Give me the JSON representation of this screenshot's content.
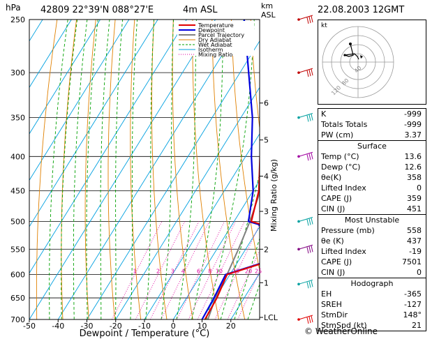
{
  "header": {
    "hpa_label": "hPa",
    "station": "42809  22°39'N  088°27'E",
    "elevation": "4m  ASL",
    "km_label": "km",
    "asl_label": "ASL",
    "datetime": "22.08.2003  12GMT"
  },
  "legend": [
    "Temperature",
    "Dewpoint",
    "Parcel Trajectory",
    "Dry Adiabat",
    "Wet Adiabat",
    "Isotherm",
    "Mixing Ratio"
  ],
  "colors": {
    "temperature": "#e00000",
    "dewpoint": "#0000e0",
    "parcel": "#808080",
    "dry_adiabat": "#e08000",
    "wet_adiabat": "#00a000",
    "isotherm": "#00a0e0",
    "mixing_ratio": "#e000a0"
  },
  "axes": {
    "xlabel": "Dewpoint / Temperature (°C)",
    "ylabel": "Mixing Ratio (g/kg)",
    "x_ticks": [
      "-50",
      "-40",
      "-30",
      "-20",
      "-10",
      "0",
      "10",
      "20"
    ],
    "pressure_levels": [
      250,
      300,
      350,
      400,
      450,
      500,
      550,
      600,
      650,
      700
    ],
    "km_ticks": [
      {
        "label": "6",
        "p": 333
      },
      {
        "label": "5",
        "p": 378
      },
      {
        "label": "4",
        "p": 428
      },
      {
        "label": "3",
        "p": 483
      },
      {
        "label": "2",
        "p": 550
      },
      {
        "label": "1",
        "p": 617
      },
      {
        "label": "LCL",
        "p": 695
      }
    ],
    "mixing_ratio_labels": [
      "1",
      "2",
      "3",
      "4",
      "6",
      "8",
      "10",
      "15",
      "20",
      "25"
    ]
  },
  "chart_data": {
    "type": "line",
    "title": "42809  22°39'N  088°27'E  4m ASL  22.08.2003 12GMT",
    "xlabel": "Dewpoint / Temperature (°C)",
    "ylabel": "hPa",
    "xlim": [
      -50,
      30
    ],
    "ylim": [
      700,
      250
    ],
    "yscale": "log",
    "series": [
      {
        "name": "Temperature",
        "points": [
          [
            11,
            700
          ],
          [
            10.5,
            650
          ],
          [
            9,
            600
          ],
          [
            27.5,
            558
          ],
          [
            10,
            505
          ],
          [
            6,
            500
          ],
          [
            2,
            450
          ],
          [
            -5,
            400
          ],
          [
            -12,
            350
          ],
          [
            -20,
            300
          ],
          [
            -31,
            250
          ]
        ]
      },
      {
        "name": "Dewpoint",
        "points": [
          [
            10,
            700
          ],
          [
            9.5,
            650
          ],
          [
            8.5,
            600
          ],
          [
            27,
            558
          ],
          [
            9,
            505
          ],
          [
            5,
            500
          ],
          [
            0,
            450
          ],
          [
            -8,
            400
          ],
          [
            -16,
            350
          ],
          [
            -27,
            300
          ],
          [
            -40,
            250
          ]
        ]
      },
      {
        "name": "Parcel Trajectory",
        "points": [
          [
            12,
            700
          ],
          [
            10,
            650
          ],
          [
            9,
            600
          ],
          [
            7.5,
            550
          ],
          [
            5.5,
            500
          ],
          [
            2.5,
            450
          ],
          [
            -1,
            400
          ],
          [
            -6,
            350
          ],
          [
            -12,
            300
          ],
          [
            -22,
            250
          ]
        ]
      }
    ]
  },
  "indices": [
    {
      "k": "K",
      "v": "-999"
    },
    {
      "k": "Totals Totals",
      "v": "-999"
    },
    {
      "k": "PW (cm)",
      "v": "3.37"
    }
  ],
  "surface": {
    "title": "Surface",
    "rows": [
      {
        "k": "Temp (°C)",
        "v": "13.6"
      },
      {
        "k": "Dewp (°C)",
        "v": "12.6"
      },
      {
        "k": "θe(K)",
        "v": "358"
      },
      {
        "k": "Lifted Index",
        "v": "0"
      },
      {
        "k": "CAPE (J)",
        "v": "359"
      },
      {
        "k": "CIN (J)",
        "v": "451"
      }
    ]
  },
  "unstable": {
    "title": "Most Unstable",
    "rows": [
      {
        "k": "Pressure (mb)",
        "v": "558"
      },
      {
        "k": "θe (K)",
        "v": "437"
      },
      {
        "k": "Lifted Index",
        "v": "-19"
      },
      {
        "k": "CAPE (J)",
        "v": "7501"
      },
      {
        "k": "CIN (J)",
        "v": "0"
      }
    ]
  },
  "hodograph": {
    "title": "Hodograph",
    "kt_label": "kt",
    "ring_labels": [
      "40",
      "80",
      "120"
    ],
    "rows": [
      {
        "k": "EH",
        "v": "-365"
      },
      {
        "k": "SREH",
        "v": "-127"
      },
      {
        "k": "StmDir",
        "v": "148°"
      },
      {
        "k": "StmSpd (kt)",
        "v": "21"
      }
    ]
  },
  "footer": "© WeatherOnline"
}
